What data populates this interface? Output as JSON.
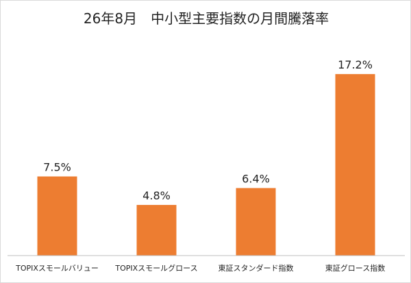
{
  "chart_data": {
    "type": "bar",
    "title": "26年8月　中小型主要指数の月間騰落率",
    "categories": [
      "TOPIXスモールバリュー",
      "TOPIXスモールグロース",
      "東証スタンダード指数",
      "東証グロース指数"
    ],
    "values": [
      7.5,
      4.8,
      6.4,
      17.2
    ],
    "value_labels": [
      "7.5%",
      "4.8%",
      "6.4%",
      "17.2%"
    ],
    "unit": "%",
    "ylim": [
      0,
      20
    ],
    "grid": false,
    "legend": "none",
    "colors": {
      "bar": "#ED7D31",
      "axis": "#bfbfbf",
      "text": "#222222"
    }
  }
}
